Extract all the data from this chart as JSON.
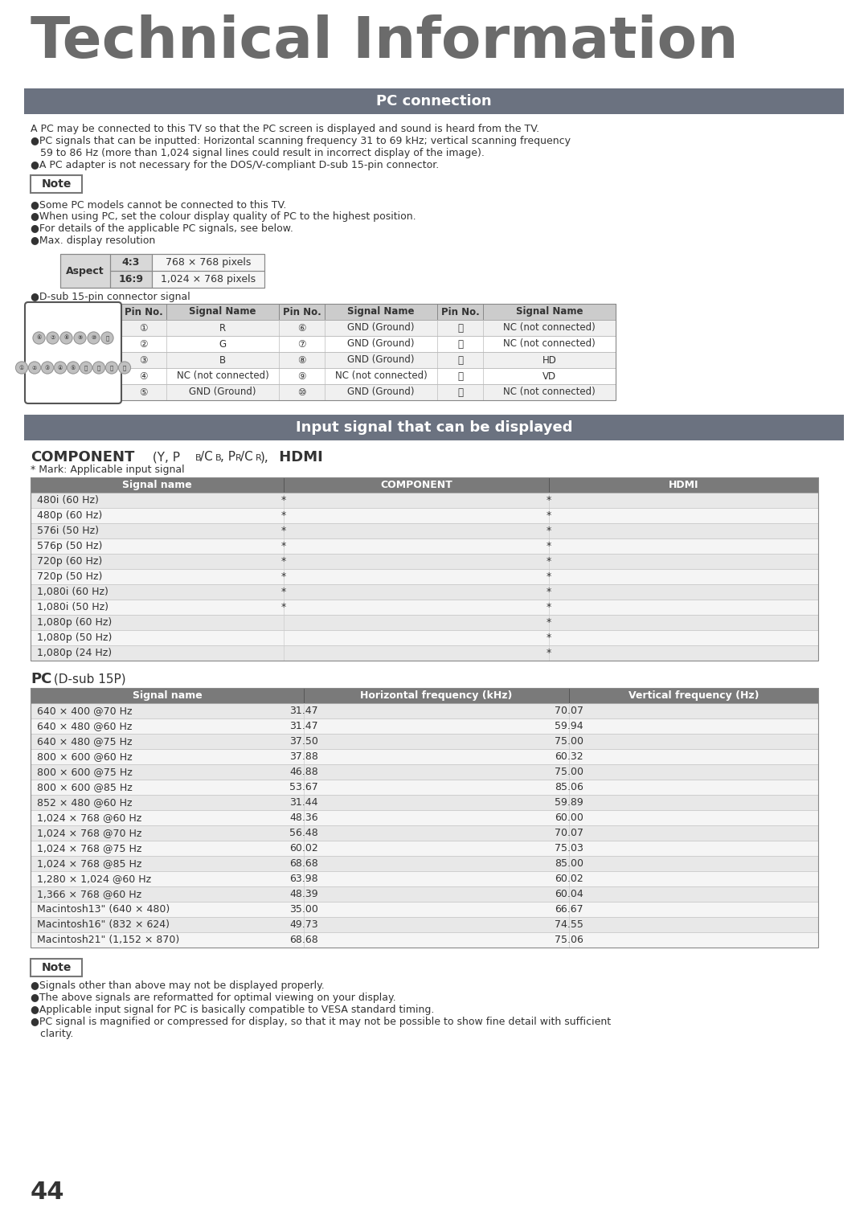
{
  "title": "Technical Information",
  "section1_header": "PC connection",
  "section2_header": "Input signal that can be displayed",
  "bg_color": "#ffffff",
  "header_bg": "#6b7280",
  "header_text": "#ffffff",
  "row_alt_bg": "#e8e8e8",
  "row_white_bg": "#f5f5f5",
  "text_color": "#333333",
  "border_color": "#aaaaaa",
  "pc_connection_text": [
    "A PC may be connected to this TV so that the PC screen is displayed and sound is heard from the TV.",
    "●PC signals that can be inputted: Horizontal scanning frequency 31 to 69 kHz; vertical scanning frequency",
    "   59 to 86 Hz (more than 1,024 signal lines could result in incorrect display of the image).",
    "●A PC adapter is not necessary for the DOS/V-compliant D-sub 15-pin connector."
  ],
  "note_items": [
    "●Some PC models cannot be connected to this TV.",
    "●When using PC, set the colour display quality of PC to the highest position.",
    "●For details of the applicable PC signals, see below.",
    "●Max. display resolution"
  ],
  "aspect_table": {
    "col1": [
      "4:3",
      "16:9"
    ],
    "col2": [
      "768 × 768 pixels",
      "1,024 × 768 pixels"
    ]
  },
  "dsub_label": "●D-sub 15-pin connector signal",
  "dsub_table_headers": [
    "Pin No.",
    "Signal Name",
    "Pin No.",
    "Signal Name",
    "Pin No.",
    "Signal Name"
  ],
  "dsub_table_rows": [
    [
      "①",
      "R",
      "⑥",
      "GND (Ground)",
      "⒪",
      "NC (not connected)"
    ],
    [
      "②",
      "G",
      "⑦",
      "GND (Ground)",
      "⑫",
      "NC (not connected)"
    ],
    [
      "③",
      "B",
      "⑧",
      "GND (Ground)",
      "⑬",
      "HD"
    ],
    [
      "④",
      "NC (not connected)",
      "⑨",
      "NC (not connected)",
      "⑭",
      "VD"
    ],
    [
      "⑤",
      "GND (Ground)",
      "⑩",
      "GND (Ground)",
      "⑮",
      "NC (not connected)"
    ]
  ],
  "component_mark_note": "* Mark: Applicable input signal",
  "component_table_headers": [
    "Signal name",
    "COMPONENT",
    "HDMI"
  ],
  "component_table_rows": [
    [
      "480i (60 Hz)",
      "*",
      "*"
    ],
    [
      "480p (60 Hz)",
      "*",
      "*"
    ],
    [
      "576i (50 Hz)",
      "*",
      "*"
    ],
    [
      "576p (50 Hz)",
      "*",
      "*"
    ],
    [
      "720p (60 Hz)",
      "*",
      "*"
    ],
    [
      "720p (50 Hz)",
      "*",
      "*"
    ],
    [
      "1,080i (60 Hz)",
      "*",
      "*"
    ],
    [
      "1,080i (50 Hz)",
      "*",
      "*"
    ],
    [
      "1,080p (60 Hz)",
      "",
      "*"
    ],
    [
      "1,080p (50 Hz)",
      "",
      "*"
    ],
    [
      "1,080p (24 Hz)",
      "",
      "*"
    ]
  ],
  "pc_table_headers": [
    "Signal name",
    "Horizontal frequency (kHz)",
    "Vertical frequency (Hz)"
  ],
  "pc_table_rows": [
    [
      "640 × 400 @70 Hz",
      "31.47",
      "70.07"
    ],
    [
      "640 × 480 @60 Hz",
      "31.47",
      "59.94"
    ],
    [
      "640 × 480 @75 Hz",
      "37.50",
      "75.00"
    ],
    [
      "800 × 600 @60 Hz",
      "37.88",
      "60.32"
    ],
    [
      "800 × 600 @75 Hz",
      "46.88",
      "75.00"
    ],
    [
      "800 × 600 @85 Hz",
      "53.67",
      "85.06"
    ],
    [
      "852 × 480 @60 Hz",
      "31.44",
      "59.89"
    ],
    [
      "1,024 × 768 @60 Hz",
      "48.36",
      "60.00"
    ],
    [
      "1,024 × 768 @70 Hz",
      "56.48",
      "70.07"
    ],
    [
      "1,024 × 768 @75 Hz",
      "60.02",
      "75.03"
    ],
    [
      "1,024 × 768 @85 Hz",
      "68.68",
      "85.00"
    ],
    [
      "1,280 × 1,024 @60 Hz",
      "63.98",
      "60.02"
    ],
    [
      "1,366 × 768 @60 Hz",
      "48.39",
      "60.04"
    ],
    [
      "Macintosh13\" (640 × 480)",
      "35.00",
      "66.67"
    ],
    [
      "Macintosh16\" (832 × 624)",
      "49.73",
      "74.55"
    ],
    [
      "Macintosh21\" (1,152 × 870)",
      "68.68",
      "75.06"
    ]
  ],
  "bottom_note_items": [
    "●Signals other than above may not be displayed properly.",
    "●The above signals are reformatted for optimal viewing on your display.",
    "●Applicable input signal for PC is basically compatible to VESA standard timing.",
    "●PC signal is magnified or compressed for display, so that it may not be possible to show fine detail with sufficient",
    "   clarity."
  ],
  "page_number": "44"
}
